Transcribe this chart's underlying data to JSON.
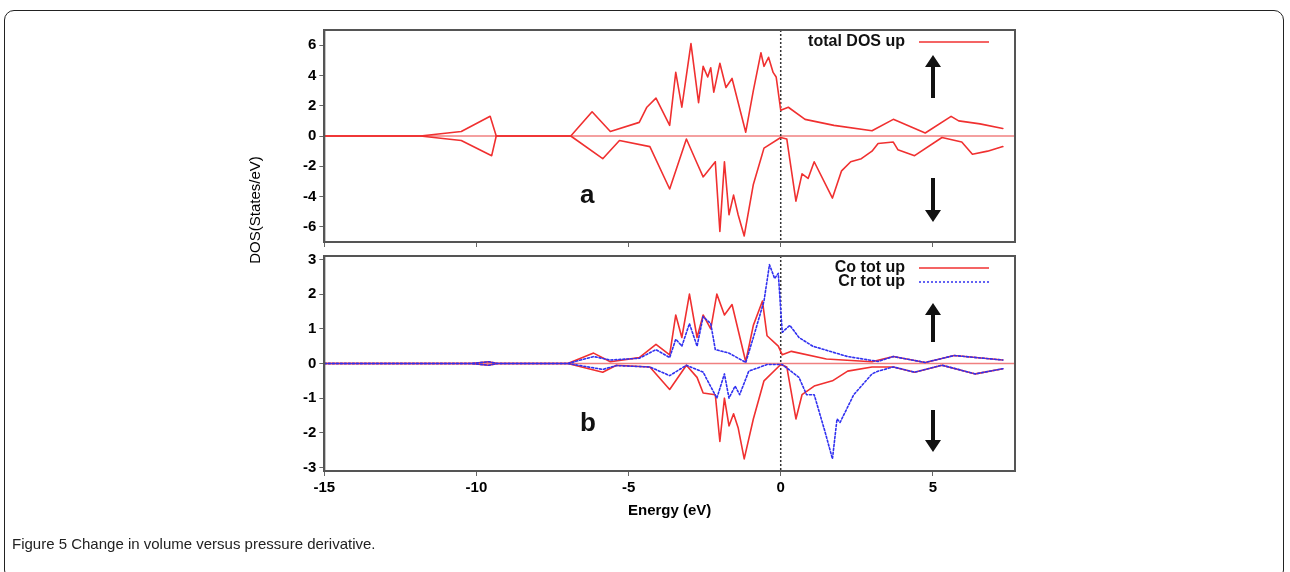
{
  "chart_data": [
    {
      "type": "line",
      "title": "a",
      "ylabel": "DOS(States/eV)",
      "xlim": [
        -15,
        7.7
      ],
      "xticks": [
        -15,
        -10,
        -5,
        0,
        5
      ],
      "ylim": [
        -7,
        7
      ],
      "yticks": [
        -6,
        -4,
        -2,
        0,
        2,
        4,
        6
      ],
      "tick_labels": "y",
      "grid": false,
      "legend": "top right",
      "marker": "none",
      "ref_lines": [
        {
          "axis": "y",
          "value": 0,
          "color": "#f08080"
        },
        {
          "axis": "x",
          "value": 0,
          "color": "#333333",
          "line_style": "dotted"
        }
      ],
      "series": [
        {
          "name": "total DOS up",
          "color": "#f03030",
          "line_style": "solid",
          "x": [
            -15,
            -11.85,
            -10.5,
            -9.55,
            -9.35,
            -6.9,
            -6.2,
            -5.6,
            -4.65,
            -4.4,
            -4.1,
            -3.65,
            -3.45,
            -3.25,
            -2.95,
            -2.7,
            -2.55,
            -2.4,
            -2.3,
            -2.2,
            -2.0,
            -1.8,
            -1.6,
            -1.15,
            -0.9,
            -0.65,
            -0.55,
            -0.4,
            -0.25,
            -0.15,
            0.0,
            0.25,
            0.8,
            1.75,
            3.0,
            3.7,
            4.75,
            5.6,
            5.85,
            6.55,
            7.3
          ],
          "values": [
            0,
            0,
            0.3,
            1.3,
            0,
            0,
            1.6,
            0.3,
            0.9,
            1.9,
            2.5,
            0.7,
            4.2,
            1.9,
            6.1,
            2.2,
            4.6,
            3.9,
            4.5,
            2.9,
            4.8,
            3.2,
            3.8,
            0.25,
            3.0,
            5.5,
            4.6,
            5.2,
            4.2,
            3.9,
            1.7,
            1.9,
            1.1,
            0.7,
            0.35,
            1.1,
            0.2,
            1.3,
            1.0,
            0.8,
            0.5
          ]
        },
        {
          "color": "#f03030",
          "line_style": "solid",
          "x": [
            -15,
            -11.85,
            -10.5,
            -9.5,
            -9.35,
            -6.9,
            -5.85,
            -5.3,
            -4.3,
            -3.65,
            -3.1,
            -2.75,
            -2.55,
            -2.15,
            -2.0,
            -1.85,
            -1.7,
            -1.55,
            -1.4,
            -1.2,
            -0.9,
            -0.55,
            0.0,
            0.2,
            0.5,
            0.7,
            0.9,
            1.1,
            1.7,
            2.0,
            2.3,
            2.65,
            3.0,
            3.2,
            3.7,
            3.85,
            4.4,
            5.3,
            5.95,
            6.3,
            6.8,
            7.3
          ],
          "values": [
            0,
            0,
            -0.3,
            -1.3,
            0,
            0,
            -1.5,
            -0.3,
            -0.7,
            -3.5,
            -0.2,
            -1.8,
            -2.7,
            -1.7,
            -6.3,
            -1.7,
            -5.2,
            -3.9,
            -5.2,
            -6.6,
            -3.2,
            -0.8,
            -0.1,
            -0.2,
            -4.3,
            -2.5,
            -2.8,
            -1.7,
            -4.1,
            -2.3,
            -1.7,
            -1.5,
            -1.0,
            -0.5,
            -0.4,
            -0.9,
            -1.3,
            -0.1,
            -0.4,
            -1.2,
            -1.0,
            -0.7
          ]
        }
      ]
    },
    {
      "type": "line",
      "title": "b",
      "xlabel": "Energy (eV)",
      "xlim": [
        -15,
        7.7
      ],
      "xticks": [
        -15,
        -10,
        -5,
        0,
        5
      ],
      "ylim": [
        -3.1,
        3.1
      ],
      "yticks": [
        -3,
        -2,
        -1,
        0,
        1,
        2,
        3
      ],
      "grid": false,
      "legend": "top right",
      "marker": "none",
      "annotations": [
        "Figure 5 Change in volume versus pressure derivative."
      ],
      "ref_lines": [
        {
          "axis": "y",
          "value": 0,
          "color": "#f08080"
        },
        {
          "axis": "x",
          "value": 0,
          "color": "#333333",
          "line_style": "dotted"
        }
      ],
      "series": [
        {
          "name": "Co tot up",
          "color": "#f03030",
          "line_style": "solid",
          "x": [
            -15,
            -10.2,
            -9.6,
            -9.3,
            -7.0,
            -6.15,
            -5.6,
            -4.65,
            -4.1,
            -3.65,
            -3.45,
            -3.25,
            -3.0,
            -2.75,
            -2.55,
            -2.3,
            -2.1,
            -1.85,
            -1.6,
            -1.15,
            -0.9,
            -0.6,
            -0.45,
            -0.08,
            0.05,
            0.35,
            1.5,
            3.0,
            3.7,
            4.75,
            5.7,
            7.3
          ],
          "values": [
            0,
            0,
            0.05,
            0,
            0,
            0.3,
            0.05,
            0.17,
            0.55,
            0.25,
            1.4,
            0.75,
            2.0,
            0.75,
            1.4,
            1.0,
            2.0,
            1.4,
            1.7,
            0.05,
            1.1,
            1.8,
            0.8,
            0.5,
            0.25,
            0.35,
            0.13,
            0.05,
            0.2,
            0.03,
            0.23,
            0.1
          ]
        },
        {
          "name": "Cr tot up",
          "color": "#3030f0",
          "line_style": "dotted",
          "x": [
            -15,
            -10.2,
            -9.6,
            -9.3,
            -7.0,
            -6.15,
            -5.6,
            -4.65,
            -4.1,
            -3.65,
            -3.45,
            -3.25,
            -3.0,
            -2.75,
            -2.55,
            -2.3,
            -2.15,
            -1.7,
            -1.15,
            -0.9,
            -0.55,
            -0.37,
            -0.2,
            -0.08,
            0.05,
            0.3,
            0.6,
            1.05,
            2.2,
            3.2,
            3.7,
            4.75,
            5.7,
            7.3
          ],
          "values": [
            0,
            0,
            0.05,
            0,
            0,
            0.2,
            0.1,
            0.15,
            0.4,
            0.17,
            0.7,
            0.5,
            1.15,
            0.5,
            1.35,
            1.15,
            0.4,
            0.3,
            0.03,
            0.75,
            1.8,
            2.85,
            2.45,
            2.6,
            0.9,
            1.1,
            0.75,
            0.5,
            0.2,
            0.06,
            0.2,
            0.03,
            0.23,
            0.1
          ]
        },
        {
          "color": "#f03030",
          "line_style": "solid",
          "x": [
            -15,
            -10.2,
            -9.6,
            -9.3,
            -7.0,
            -5.85,
            -5.4,
            -4.3,
            -3.65,
            -3.1,
            -2.75,
            -2.55,
            -2.15,
            -2.0,
            -1.85,
            -1.7,
            -1.55,
            -1.4,
            -1.2,
            -0.9,
            -0.55,
            0.0,
            0.2,
            0.5,
            0.7,
            1.1,
            1.7,
            2.2,
            3.0,
            3.7,
            4.4,
            5.3,
            6.4,
            7.3
          ],
          "values": [
            0,
            0,
            -0.05,
            0,
            0,
            -0.25,
            -0.05,
            -0.1,
            -0.75,
            -0.05,
            -0.4,
            -0.85,
            -0.9,
            -2.25,
            -1.0,
            -1.8,
            -1.45,
            -1.85,
            -2.75,
            -1.6,
            -0.5,
            -0.03,
            -0.1,
            -1.6,
            -0.9,
            -0.65,
            -0.5,
            -0.22,
            -0.1,
            -0.1,
            -0.25,
            -0.05,
            -0.3,
            -0.15
          ]
        },
        {
          "color": "#3030f0",
          "line_style": "dotted",
          "x": [
            -15,
            -10.2,
            -9.6,
            -9.3,
            -7.0,
            -5.85,
            -5.4,
            -4.3,
            -3.65,
            -3.1,
            -2.55,
            -2.1,
            -1.85,
            -1.7,
            -1.5,
            -1.35,
            -1.05,
            -0.45,
            0.05,
            0.6,
            0.85,
            1.1,
            1.45,
            1.7,
            1.85,
            1.95,
            2.4,
            3.0,
            3.2,
            3.7,
            4.4,
            5.3,
            6.4,
            7.3
          ],
          "values": [
            0,
            0,
            -0.05,
            0,
            0,
            -0.17,
            -0.06,
            -0.1,
            -0.35,
            -0.05,
            -0.25,
            -1.0,
            -0.3,
            -1.0,
            -0.65,
            -0.9,
            -0.22,
            -0.03,
            -0.03,
            -0.4,
            -0.9,
            -0.9,
            -1.95,
            -2.75,
            -1.6,
            -1.7,
            -0.9,
            -0.3,
            -0.22,
            -0.1,
            -0.25,
            -0.05,
            -0.3,
            -0.15
          ]
        }
      ]
    }
  ]
}
